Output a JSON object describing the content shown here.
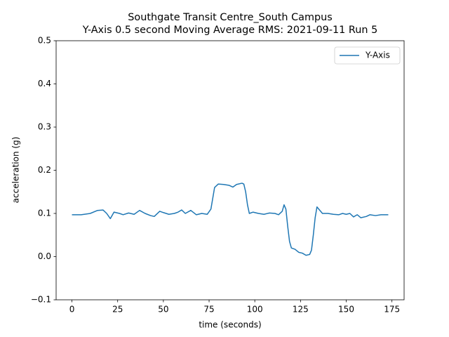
{
  "chart_data": {
    "type": "line",
    "title": "Southgate Transit Centre_South Campus",
    "subtitle": "Y-Axis 0.5 second Moving Average RMS: 2021-09-11 Run 5",
    "x_label": "time (seconds)",
    "y_label": "acceleration (g)",
    "x": [
      0,
      5,
      10,
      14,
      17,
      19,
      21,
      23,
      26,
      28,
      31,
      34,
      37,
      40,
      43,
      45,
      48,
      50,
      53,
      56,
      58,
      60,
      62,
      65,
      68,
      71,
      74,
      76,
      78,
      80,
      83,
      86,
      88,
      90,
      93,
      94,
      95,
      96,
      97,
      99,
      102,
      105,
      108,
      111,
      113,
      115,
      116,
      117,
      118,
      119,
      120,
      122,
      124,
      126,
      128,
      130,
      131,
      132,
      133,
      134,
      135,
      137,
      140,
      143,
      146,
      148,
      150,
      152,
      154,
      156,
      158,
      161,
      163,
      166,
      169,
      173
    ],
    "series": [
      {
        "name": "Y-Axis",
        "color": "#1f77b4",
        "values": [
          0.097,
          0.097,
          0.1,
          0.107,
          0.108,
          0.1,
          0.088,
          0.103,
          0.1,
          0.097,
          0.101,
          0.098,
          0.107,
          0.1,
          0.095,
          0.093,
          0.105,
          0.102,
          0.098,
          0.1,
          0.103,
          0.108,
          0.1,
          0.107,
          0.097,
          0.1,
          0.098,
          0.11,
          0.16,
          0.168,
          0.167,
          0.165,
          0.161,
          0.167,
          0.17,
          0.168,
          0.15,
          0.12,
          0.1,
          0.103,
          0.1,
          0.098,
          0.101,
          0.1,
          0.097,
          0.105,
          0.12,
          0.11,
          0.07,
          0.035,
          0.02,
          0.017,
          0.01,
          0.008,
          0.003,
          0.005,
          0.015,
          0.05,
          0.09,
          0.115,
          0.11,
          0.1,
          0.1,
          0.098,
          0.097,
          0.1,
          0.098,
          0.1,
          0.092,
          0.097,
          0.09,
          0.093,
          0.097,
          0.095,
          0.097,
          0.097
        ]
      }
    ],
    "xlim": [
      -8.65,
      181.65
    ],
    "ylim": [
      -0.1,
      0.5
    ],
    "xticks": [
      0,
      25,
      50,
      75,
      100,
      125,
      150,
      175
    ],
    "yticks": [
      {
        "value": -0.1,
        "label": "−0.1"
      },
      {
        "value": 0,
        "label": "0.0"
      },
      0.1,
      0.2,
      0.3,
      0.4,
      0.5
    ],
    "legend": "upper right"
  }
}
